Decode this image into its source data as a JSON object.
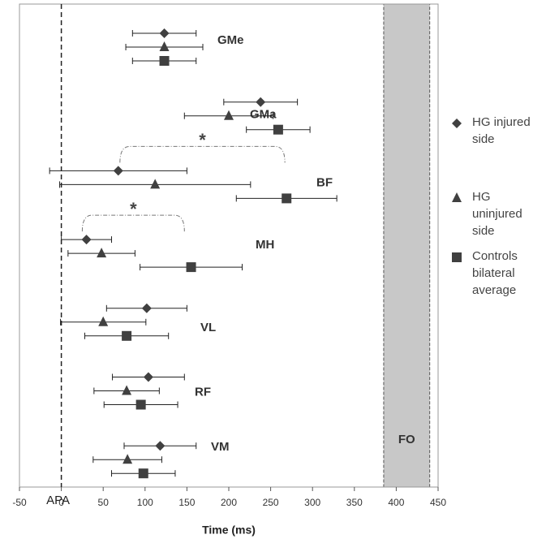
{
  "chart_data": {
    "type": "dot-errorbar",
    "x_label": "Time (ms)",
    "xlim": [
      -50,
      450
    ],
    "xticks": [
      -50,
      0,
      50,
      100,
      150,
      200,
      250,
      300,
      350,
      400,
      450
    ],
    "categories": [
      "GMe",
      "GMa",
      "BF",
      "MH",
      "VL",
      "RF",
      "VM"
    ],
    "series": [
      {
        "name": "HG injured side",
        "marker": "diamond",
        "color": "#404040",
        "values": [
          123,
          238,
          68,
          30,
          102,
          104,
          118
        ],
        "errors": [
          38,
          44,
          82,
          30,
          48,
          43,
          43
        ]
      },
      {
        "name": "HG uninjured side",
        "marker": "triangle",
        "color": "#404040",
        "values": [
          123,
          200,
          112,
          48,
          50,
          78,
          79
        ],
        "errors": [
          46,
          53,
          114,
          40,
          51,
          39,
          41
        ]
      },
      {
        "name": "Controls bilateral average",
        "marker": "square",
        "color": "#404040",
        "values": [
          123,
          259,
          269,
          155,
          78,
          95,
          98
        ],
        "errors": [
          38,
          38,
          60,
          61,
          50,
          44,
          38
        ]
      }
    ],
    "reference_line": {
      "value": 0,
      "label": "APA"
    },
    "shaded_region": {
      "range": [
        385,
        440
      ],
      "label": "FO",
      "color": "#c8c8c8"
    },
    "brackets": [
      {
        "category": "BF",
        "label": "*",
        "range": [
          70,
          267
        ]
      },
      {
        "category": "MH",
        "label": "*",
        "range": [
          25,
          147
        ]
      }
    ]
  }
}
